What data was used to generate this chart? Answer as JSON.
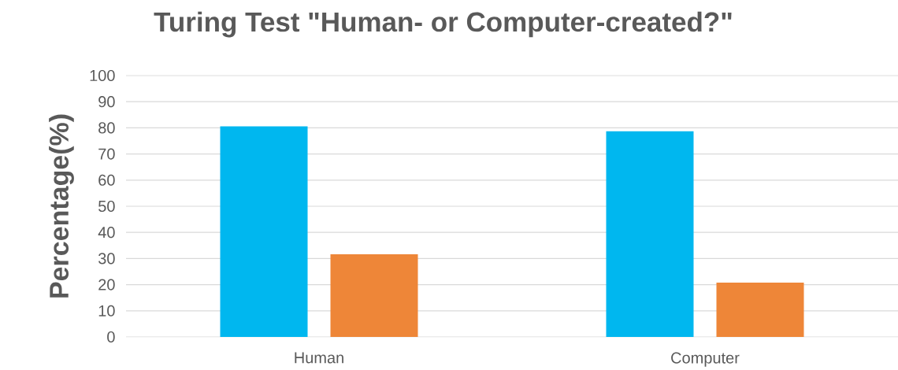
{
  "chart_data": {
    "type": "bar",
    "title": "Turing Test \"Human- or Computer-created?\"",
    "ylabel": "Percentage(%)",
    "categories": [
      "Human",
      "Computer"
    ],
    "series": [
      {
        "color": "#00b7ef",
        "values": [
          80.6,
          78.7
        ]
      },
      {
        "color": "#ee8638",
        "values": [
          31.6,
          20.8
        ]
      }
    ],
    "ylim": [
      0,
      100
    ],
    "yticks": [
      0,
      10,
      20,
      30,
      40,
      50,
      60,
      70,
      80,
      90,
      100
    ],
    "grid": "y"
  }
}
